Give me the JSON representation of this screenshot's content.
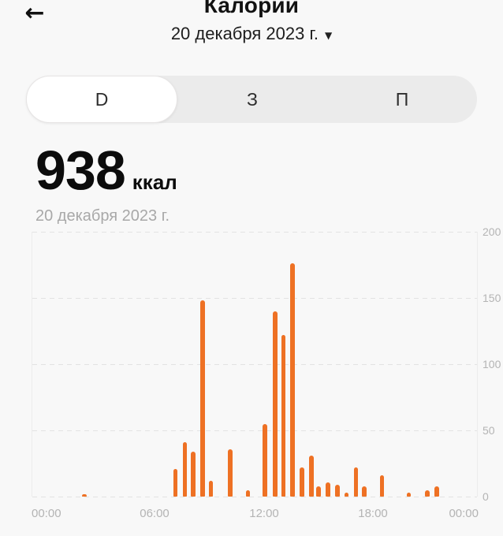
{
  "header": {
    "title": "Калории",
    "back_icon_glyph": "←",
    "date_selector_label": "20 декабря 2023 г.",
    "dropdown_icon_glyph": "▼"
  },
  "tabs": {
    "items": [
      {
        "label": "D",
        "selected": true
      },
      {
        "label": "З",
        "selected": false
      },
      {
        "label": "П",
        "selected": false
      }
    ]
  },
  "summary": {
    "value": "938",
    "unit": "ккал",
    "date": "20 декабря 2023 г."
  },
  "chart_data": {
    "type": "bar",
    "title": "",
    "x_unit": "hour_of_day",
    "x_range_hours": [
      0,
      24
    ],
    "xticks": [
      "00:00",
      "06:00",
      "12:00",
      "18:00",
      "00:00"
    ],
    "yticks": [
      0,
      50,
      100,
      150,
      200
    ],
    "ylim": [
      0,
      200
    ],
    "ytick_side": "right",
    "grid": "horizontal-dashed",
    "bar_color": "#ee7124",
    "total_kcal": 938,
    "bars": [
      {
        "hour": 2.8,
        "kcal": 2
      },
      {
        "hour": 7.7,
        "kcal": 21
      },
      {
        "hour": 8.2,
        "kcal": 41
      },
      {
        "hour": 8.65,
        "kcal": 34
      },
      {
        "hour": 9.15,
        "kcal": 148
      },
      {
        "hour": 9.6,
        "kcal": 12
      },
      {
        "hour": 10.65,
        "kcal": 36
      },
      {
        "hour": 11.6,
        "kcal": 5
      },
      {
        "hour": 12.5,
        "kcal": 55
      },
      {
        "hour": 13.05,
        "kcal": 140
      },
      {
        "hour": 13.5,
        "kcal": 122
      },
      {
        "hour": 14.0,
        "kcal": 176
      },
      {
        "hour": 14.5,
        "kcal": 22
      },
      {
        "hour": 15.0,
        "kcal": 31
      },
      {
        "hour": 15.4,
        "kcal": 8
      },
      {
        "hour": 15.9,
        "kcal": 11
      },
      {
        "hour": 16.4,
        "kcal": 9
      },
      {
        "hour": 16.9,
        "kcal": 3
      },
      {
        "hour": 17.4,
        "kcal": 22
      },
      {
        "hour": 17.85,
        "kcal": 8
      },
      {
        "hour": 18.8,
        "kcal": 16
      },
      {
        "hour": 20.25,
        "kcal": 3
      },
      {
        "hour": 21.25,
        "kcal": 5
      },
      {
        "hour": 21.75,
        "kcal": 8
      }
    ]
  }
}
